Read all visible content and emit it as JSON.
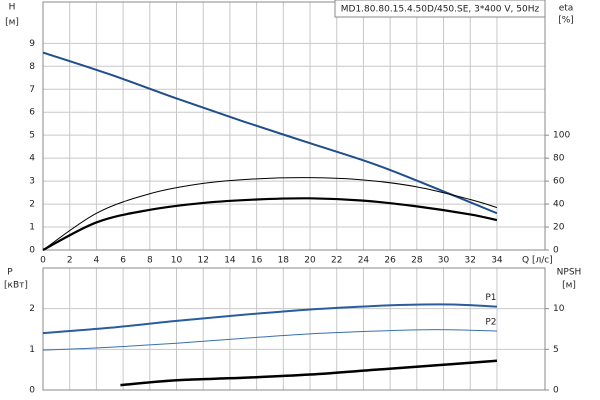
{
  "chart_data": [
    {
      "type": "line",
      "title": "MD1.80.80.15.4.50D/450.SE, 3*400 V, 50Hz",
      "y_label": "H",
      "y_unit": "[м]",
      "y2_label": "eta",
      "y2_unit": "[%]",
      "x_label": "Q [л/с]",
      "xlim": [
        0,
        37.6
      ],
      "xticks": [
        0,
        2,
        4,
        6,
        8,
        10,
        12,
        14,
        16,
        18,
        20,
        22,
        24,
        26,
        28,
        30,
        32,
        34
      ],
      "ylim": [
        0,
        10.8
      ],
      "yticks": [
        0,
        1,
        2,
        3,
        4,
        5,
        6,
        7,
        8,
        9
      ],
      "y2lim": [
        0,
        216
      ],
      "y2ticks": [
        0,
        20,
        40,
        60,
        80,
        100
      ],
      "grid": true,
      "show_xtick_labels": true,
      "series": [
        {
          "color": "#1f4e8c",
          "width": 2,
          "x": [
            0,
            5,
            10,
            15,
            20,
            25,
            30,
            34
          ],
          "values": [
            8.6,
            7.65,
            6.6,
            5.6,
            4.65,
            3.7,
            2.55,
            1.6
          ]
        },
        {
          "color": "#000000",
          "width": 1,
          "axis": "y2",
          "x": [
            0,
            4,
            8,
            12,
            16,
            20,
            24,
            28,
            32,
            34
          ],
          "values": [
            0,
            32,
            49,
            58,
            62,
            63,
            61,
            55,
            44,
            37
          ]
        },
        {
          "color": "#000000",
          "width": 2.2,
          "axis": "y2",
          "x": [
            0,
            4,
            8,
            12,
            16,
            20,
            24,
            28,
            32,
            34
          ],
          "values": [
            0,
            24,
            35,
            41,
            44,
            45,
            43,
            38,
            31,
            26
          ]
        }
      ]
    },
    {
      "type": "line",
      "y_label": "P",
      "y_unit": "[кВт]",
      "y2_label": "NPSH",
      "y2_unit": "[м]",
      "xlim": [
        0,
        37.6
      ],
      "xticks": [
        0,
        2,
        4,
        6,
        8,
        10,
        12,
        14,
        16,
        18,
        20,
        22,
        24,
        26,
        28,
        30,
        32,
        34
      ],
      "ylim": [
        0,
        3
      ],
      "yticks": [
        0,
        1,
        2
      ],
      "y2lim": [
        0,
        15
      ],
      "y2ticks": [
        0,
        5,
        10
      ],
      "grid": true,
      "show_xtick_labels": false,
      "series": [
        {
          "name": "P1",
          "color": "#2a5d9c",
          "width": 2,
          "x": [
            0,
            5,
            10,
            15,
            20,
            25,
            28,
            31,
            34
          ],
          "values": [
            1.4,
            1.53,
            1.7,
            1.85,
            1.98,
            2.07,
            2.1,
            2.1,
            2.05
          ]
        },
        {
          "name": "P2",
          "color": "#3a6fb0",
          "width": 1,
          "x": [
            0,
            5,
            10,
            15,
            20,
            25,
            28,
            31,
            34
          ],
          "values": [
            0.98,
            1.05,
            1.15,
            1.27,
            1.38,
            1.45,
            1.48,
            1.48,
            1.45
          ]
        },
        {
          "color": "#000000",
          "width": 2.5,
          "axis": "y2",
          "x": [
            5.8,
            10,
            15,
            20,
            25,
            30,
            34
          ],
          "values": [
            0.6,
            1.2,
            1.5,
            1.9,
            2.5,
            3.1,
            3.6
          ]
        }
      ]
    }
  ]
}
